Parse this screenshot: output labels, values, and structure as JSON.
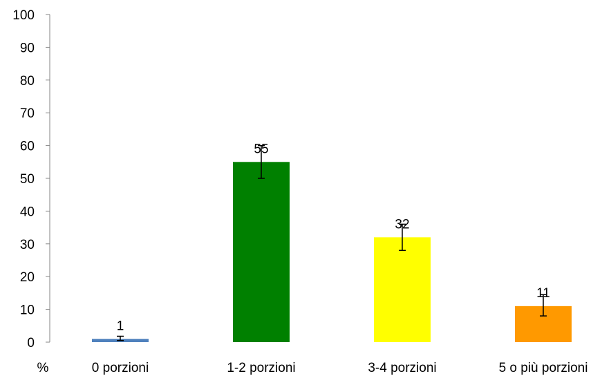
{
  "chart_data": {
    "type": "bar",
    "x_unit_label": "%",
    "categories": [
      "0 porzioni",
      "1-2 porzioni",
      "3-4 porzioni",
      "5 o più porzioni"
    ],
    "values": [
      1,
      55,
      32,
      11
    ],
    "data_labels": [
      "1",
      "55",
      "32",
      "11"
    ],
    "error_bars": [
      {
        "low": 0.5,
        "high": 1.8
      },
      {
        "low": 50,
        "high": 60
      },
      {
        "low": 28,
        "high": 36
      },
      {
        "low": 8,
        "high": 14.5
      }
    ],
    "colors": [
      "#4F81BD",
      "#008000",
      "#FFFF00",
      "#FF9900"
    ],
    "ylim": [
      0,
      100
    ],
    "yticks": [
      0,
      10,
      20,
      30,
      40,
      50,
      60,
      70,
      80,
      90,
      100
    ],
    "grid": false,
    "legend": "none"
  }
}
